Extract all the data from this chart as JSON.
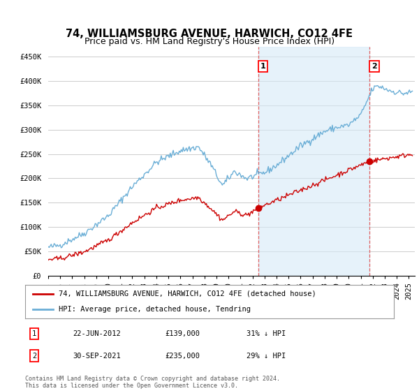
{
  "title": "74, WILLIAMSBURG AVENUE, HARWICH, CO12 4FE",
  "subtitle": "Price paid vs. HM Land Registry's House Price Index (HPI)",
  "ylabel_ticks": [
    "£0",
    "£50K",
    "£100K",
    "£150K",
    "£200K",
    "£250K",
    "£300K",
    "£350K",
    "£400K",
    "£450K"
  ],
  "ytick_values": [
    0,
    50000,
    100000,
    150000,
    200000,
    250000,
    300000,
    350000,
    400000,
    450000
  ],
  "ylim": [
    0,
    470000
  ],
  "xlim_start": 1995.0,
  "xlim_end": 2025.5,
  "hpi_color": "#6aaed6",
  "hpi_fill_color": "#d6eaf8",
  "price_color": "#cc0000",
  "vline_color": "#e06060",
  "background_color": "#ffffff",
  "grid_color": "#cccccc",
  "transaction1_x": 2012.47,
  "transaction1_y": 139000,
  "transaction2_x": 2021.75,
  "transaction2_y": 235000,
  "legend_line1": "74, WILLIAMSBURG AVENUE, HARWICH, CO12 4FE (detached house)",
  "legend_line2": "HPI: Average price, detached house, Tendring",
  "table_row1": [
    "1",
    "22-JUN-2012",
    "£139,000",
    "31% ↓ HPI"
  ],
  "table_row2": [
    "2",
    "30-SEP-2021",
    "£235,000",
    "29% ↓ HPI"
  ],
  "footnote": "Contains HM Land Registry data © Crown copyright and database right 2024.\nThis data is licensed under the Open Government Licence v3.0.",
  "title_fontsize": 10.5,
  "subtitle_fontsize": 9,
  "tick_fontsize": 7.5
}
